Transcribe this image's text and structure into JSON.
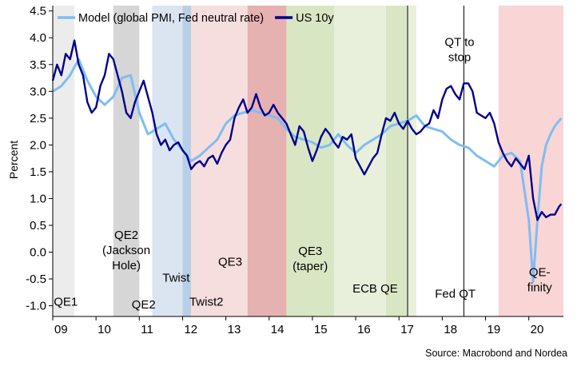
{
  "chart_data": {
    "type": "line",
    "ylabel": "Percent",
    "ylim": [
      -1.2,
      4.6
    ],
    "yticks": [
      "4.5",
      "4.0",
      "3.5",
      "3.0",
      "2.5",
      "2.0",
      "1.5",
      "1.0",
      "0.5",
      "0.0",
      "-0.5",
      "-1.0"
    ],
    "ytick_values": [
      4.5,
      4.0,
      3.5,
      3.0,
      2.5,
      2.0,
      1.5,
      1.0,
      0.5,
      0.0,
      -0.5,
      -1.0
    ],
    "xlim": [
      2009.0,
      2020.8
    ],
    "xticks": [
      "09",
      "10",
      "11",
      "12",
      "13",
      "14",
      "15",
      "16",
      "17",
      "18",
      "19",
      "20"
    ],
    "xtick_values": [
      2009.0,
      2010.0,
      2011.0,
      2012.0,
      2013.0,
      2014.0,
      2015.0,
      2016.0,
      2017.0,
      2018.0,
      2019.0,
      2020.0
    ],
    "legend_position": "top-left",
    "source": "Source: Macrobond and Nordea",
    "shaded_regions": [
      {
        "start": 2009.0,
        "end": 2009.5,
        "color": "#ececec"
      },
      {
        "start": 2010.4,
        "end": 2011.0,
        "color": "#d6d6d6"
      },
      {
        "start": 2011.3,
        "end": 2012.0,
        "color": "#dbe5f1"
      },
      {
        "start": 2012.0,
        "end": 2012.2,
        "color": "#b9cfe6"
      },
      {
        "start": 2012.2,
        "end": 2013.5,
        "color": "#f7dede"
      },
      {
        "start": 2013.5,
        "end": 2014.4,
        "color": "#e6b1b1"
      },
      {
        "start": 2014.4,
        "end": 2015.5,
        "color": "#d9e6c4"
      },
      {
        "start": 2015.5,
        "end": 2016.7,
        "color": "#e8f0dc"
      },
      {
        "start": 2016.7,
        "end": 2017.2,
        "color": "#d9e6c4"
      },
      {
        "start": 2017.2,
        "end": 2017.4,
        "color": "#e8f0dc"
      },
      {
        "start": 2019.3,
        "end": 2020.8,
        "color": "#f9d5d5"
      }
    ],
    "vlines": [
      2017.2,
      2018.5
    ],
    "annotations": [
      {
        "lines": [
          "QE1"
        ],
        "x": 2009.3,
        "y": -1.0
      },
      {
        "lines": [
          "QE2",
          "(Jackson",
          "Hole)"
        ],
        "x": 2010.7,
        "y": 0.25
      },
      {
        "lines": [
          "QE2"
        ],
        "x": 2011.1,
        "y": -1.05
      },
      {
        "lines": [
          "Twist"
        ],
        "x": 2011.85,
        "y": -0.55
      },
      {
        "lines": [
          "Twist2"
        ],
        "x": 2012.55,
        "y": -1.0
      },
      {
        "lines": [
          "QE3"
        ],
        "x": 2013.1,
        "y": -0.25
      },
      {
        "lines": [
          "QE3",
          "(taper)"
        ],
        "x": 2014.95,
        "y": -0.05
      },
      {
        "lines": [
          "ECB QE"
        ],
        "x": 2016.45,
        "y": -0.75
      },
      {
        "lines": [
          "Fed QT"
        ],
        "x": 2018.3,
        "y": -0.85
      },
      {
        "lines": [
          "QT to",
          "stop"
        ],
        "x": 2018.4,
        "y": 3.85
      },
      {
        "lines": [
          "QE-",
          "finity"
        ],
        "x": 2020.25,
        "y": -0.45
      }
    ],
    "series": [
      {
        "name": "Model (global PMI, Fed neutral rate)",
        "color": "#7fbdf2",
        "x": [
          2009.0,
          2009.2,
          2009.4,
          2009.6,
          2009.8,
          2010.0,
          2010.2,
          2010.4,
          2010.6,
          2010.8,
          2011.0,
          2011.2,
          2011.4,
          2011.6,
          2011.8,
          2012.0,
          2012.2,
          2012.4,
          2012.6,
          2012.8,
          2013.0,
          2013.2,
          2013.4,
          2013.6,
          2013.8,
          2014.0,
          2014.2,
          2014.4,
          2014.6,
          2014.8,
          2015.0,
          2015.2,
          2015.4,
          2015.6,
          2015.8,
          2016.0,
          2016.2,
          2016.4,
          2016.6,
          2016.8,
          2017.0,
          2017.2,
          2017.4,
          2017.6,
          2017.8,
          2018.0,
          2018.2,
          2018.4,
          2018.6,
          2018.8,
          2019.0,
          2019.2,
          2019.4,
          2019.6,
          2019.8,
          2020.0,
          2020.1,
          2020.2,
          2020.3,
          2020.4,
          2020.5,
          2020.6,
          2020.75
        ],
        "values": [
          3.0,
          3.1,
          3.3,
          3.6,
          3.2,
          2.9,
          2.75,
          2.9,
          3.25,
          3.3,
          2.6,
          2.2,
          2.3,
          2.4,
          2.1,
          1.9,
          1.7,
          1.8,
          1.95,
          2.1,
          2.4,
          2.55,
          2.6,
          2.65,
          2.6,
          2.55,
          2.5,
          2.3,
          2.15,
          2.1,
          2.05,
          1.95,
          2.0,
          2.2,
          2.0,
          1.85,
          2.0,
          2.1,
          2.2,
          2.35,
          2.4,
          2.45,
          2.55,
          2.35,
          2.3,
          2.25,
          2.1,
          2.0,
          1.95,
          1.8,
          1.7,
          1.6,
          1.8,
          1.85,
          1.7,
          0.6,
          -0.55,
          0.6,
          1.6,
          2.0,
          2.2,
          2.35,
          2.5
        ]
      },
      {
        "name": "US 10y",
        "color": "#00008b",
        "x": [
          2009.0,
          2009.1,
          2009.2,
          2009.3,
          2009.4,
          2009.5,
          2009.6,
          2009.7,
          2009.8,
          2009.9,
          2010.0,
          2010.1,
          2010.2,
          2010.3,
          2010.4,
          2010.5,
          2010.6,
          2010.7,
          2010.8,
          2010.9,
          2011.0,
          2011.1,
          2011.2,
          2011.3,
          2011.4,
          2011.5,
          2011.6,
          2011.7,
          2011.8,
          2011.9,
          2012.0,
          2012.1,
          2012.2,
          2012.3,
          2012.4,
          2012.5,
          2012.6,
          2012.7,
          2012.8,
          2012.9,
          2013.0,
          2013.1,
          2013.2,
          2013.3,
          2013.4,
          2013.5,
          2013.6,
          2013.7,
          2013.8,
          2013.9,
          2014.0,
          2014.1,
          2014.2,
          2014.3,
          2014.4,
          2014.5,
          2014.6,
          2014.7,
          2014.8,
          2014.9,
          2015.0,
          2015.1,
          2015.2,
          2015.3,
          2015.4,
          2015.5,
          2015.6,
          2015.7,
          2015.8,
          2015.9,
          2016.0,
          2016.1,
          2016.2,
          2016.3,
          2016.4,
          2016.5,
          2016.6,
          2016.7,
          2016.8,
          2016.9,
          2017.0,
          2017.1,
          2017.2,
          2017.3,
          2017.4,
          2017.5,
          2017.6,
          2017.7,
          2017.8,
          2017.9,
          2018.0,
          2018.1,
          2018.2,
          2018.3,
          2018.4,
          2018.5,
          2018.6,
          2018.7,
          2018.8,
          2018.9,
          2019.0,
          2019.1,
          2019.2,
          2019.3,
          2019.4,
          2019.5,
          2019.6,
          2019.7,
          2019.8,
          2019.9,
          2020.0,
          2020.1,
          2020.2,
          2020.3,
          2020.4,
          2020.5,
          2020.6,
          2020.7,
          2020.75
        ],
        "values": [
          3.2,
          3.5,
          3.3,
          3.7,
          3.6,
          3.95,
          3.5,
          3.3,
          2.8,
          2.6,
          2.7,
          3.1,
          3.3,
          3.7,
          3.6,
          3.3,
          3.0,
          2.6,
          2.5,
          2.8,
          3.0,
          3.2,
          2.9,
          2.6,
          2.2,
          2.0,
          2.1,
          1.9,
          2.0,
          2.05,
          1.9,
          1.8,
          1.55,
          1.65,
          1.7,
          1.6,
          1.75,
          1.8,
          1.65,
          1.85,
          2.0,
          2.1,
          2.5,
          2.7,
          2.85,
          2.6,
          2.7,
          2.95,
          2.7,
          2.55,
          2.6,
          2.75,
          2.6,
          2.5,
          2.4,
          2.2,
          2.0,
          2.35,
          2.25,
          1.95,
          1.7,
          1.9,
          2.15,
          2.3,
          2.2,
          2.05,
          1.95,
          2.15,
          2.1,
          2.2,
          1.75,
          1.6,
          1.45,
          1.6,
          1.75,
          1.85,
          2.2,
          2.5,
          2.45,
          2.6,
          2.4,
          2.3,
          2.45,
          2.3,
          2.2,
          2.25,
          2.35,
          2.4,
          2.65,
          2.5,
          2.85,
          3.05,
          3.1,
          2.95,
          2.85,
          3.15,
          3.15,
          3.0,
          2.6,
          2.55,
          2.5,
          2.6,
          2.4,
          2.05,
          1.85,
          1.7,
          1.6,
          1.75,
          1.65,
          1.55,
          1.8,
          1.0,
          0.6,
          0.75,
          0.65,
          0.7,
          0.7,
          0.85,
          0.9
        ]
      }
    ]
  }
}
